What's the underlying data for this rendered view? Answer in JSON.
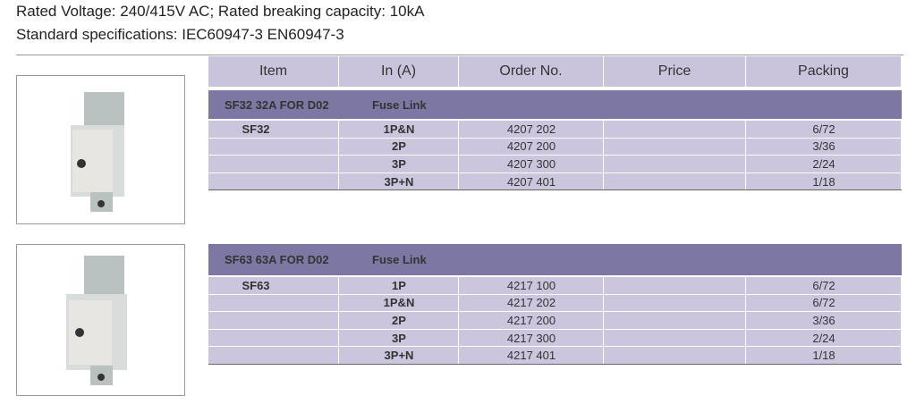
{
  "header": {
    "line1": "Rated Voltage: 240/415V AC;  Rated breaking capacity: 10kA",
    "line2": "Standard specifications: IEC60947-3   EN60947-3"
  },
  "table": {
    "columns": [
      "Item",
      "In (A)",
      "Order No.",
      "Price",
      "Packing"
    ],
    "sections": [
      {
        "title": "SF32 32A FOR D02",
        "subtitle": "Fuse Link",
        "item": "SF32",
        "rows": [
          {
            "in_a": "1P&N",
            "order_no": "4207 202",
            "packing": "6/72"
          },
          {
            "in_a": "2P",
            "order_no": "4207 200",
            "packing": "3/36"
          },
          {
            "in_a": "3P",
            "order_no": "4207 300",
            "packing": "2/24"
          },
          {
            "in_a": "3P+N",
            "order_no": "4207 401",
            "packing": "1/18"
          }
        ]
      },
      {
        "title": "SF63 63A FOR D02",
        "subtitle": "Fuse Link",
        "item": "SF63",
        "rows": [
          {
            "in_a": "1P",
            "order_no": "4217 100",
            "packing": "6/72"
          },
          {
            "in_a": "1P&N",
            "order_no": "4217 202",
            "packing": "6/72"
          },
          {
            "in_a": "2P",
            "order_no": "4217 200",
            "packing": "3/36"
          },
          {
            "in_a": "3P",
            "order_no": "4217 300",
            "packing": "2/24"
          },
          {
            "in_a": "3P+N",
            "order_no": "4217 401",
            "packing": "1/18"
          }
        ]
      }
    ]
  }
}
